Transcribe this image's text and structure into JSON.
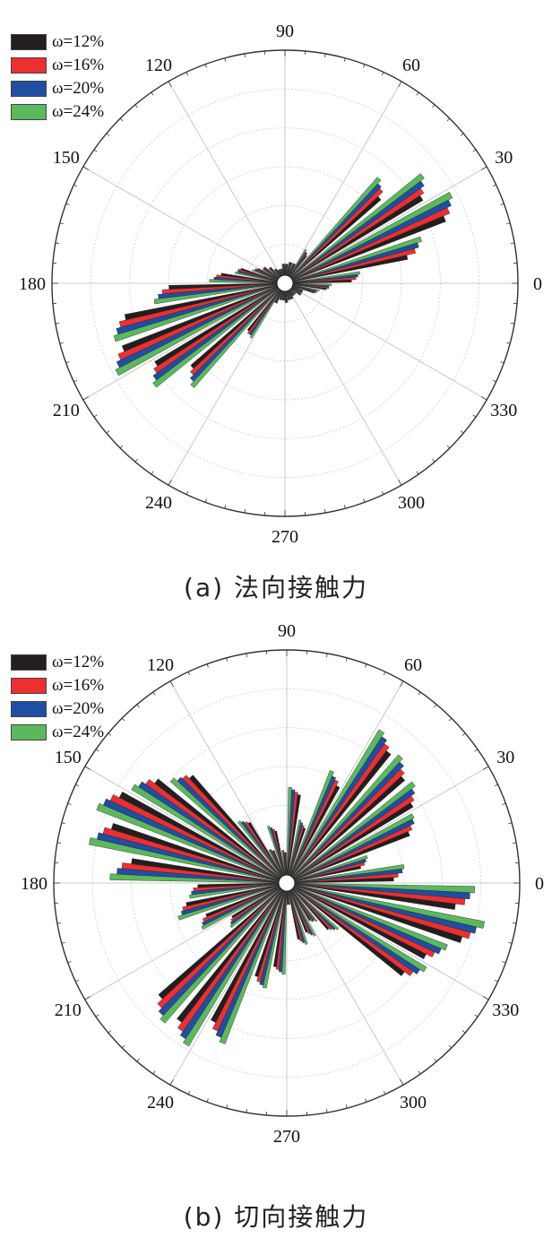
{
  "colors": [
    "#231f20",
    "#ed2f2f",
    "#1f4ea3",
    "#5cb85c"
  ],
  "chart_data": [
    {
      "type": "bar",
      "subtype": "polar-rose",
      "caption": "(a) 法向接触力",
      "angle_labels": [
        "0",
        "30",
        "60",
        "90",
        "120",
        "150",
        "180",
        "210",
        "240",
        "270",
        "300",
        "330"
      ],
      "series_names": [
        "ω=12%",
        "ω=16%",
        "ω=20%",
        "ω=24%"
      ],
      "radial_max": 1.0,
      "grid": true,
      "legend": "top-left",
      "angles": [
        5,
        15,
        25,
        35,
        45,
        55,
        65,
        75,
        85,
        95,
        105,
        115,
        125,
        135,
        145,
        155,
        165,
        175,
        185,
        195,
        205,
        215,
        225,
        235,
        245,
        255,
        265,
        275,
        285,
        295,
        305,
        315,
        325,
        335,
        345,
        355
      ],
      "series": [
        {
          "name": "ω=12%",
          "values": [
            0.26,
            0.52,
            0.73,
            0.68,
            0.53,
            0.12,
            0.06,
            0.06,
            0.05,
            0.05,
            0.03,
            0.03,
            0.04,
            0.06,
            0.08,
            0.1,
            0.17,
            0.25,
            0.48,
            0.69,
            0.74,
            0.64,
            0.52,
            0.23,
            0.06,
            0.04,
            0.04,
            0.05,
            0.04,
            0.04,
            0.03,
            0.03,
            0.05,
            0.05,
            0.1,
            0.15
          ]
        },
        {
          "name": "ω=16%",
          "values": [
            0.28,
            0.56,
            0.76,
            0.7,
            0.56,
            0.13,
            0.06,
            0.06,
            0.05,
            0.05,
            0.03,
            0.03,
            0.04,
            0.06,
            0.08,
            0.11,
            0.18,
            0.27,
            0.51,
            0.72,
            0.77,
            0.66,
            0.54,
            0.24,
            0.06,
            0.04,
            0.04,
            0.05,
            0.04,
            0.04,
            0.03,
            0.03,
            0.05,
            0.05,
            0.11,
            0.16
          ]
        },
        {
          "name": "ω=20%",
          "values": [
            0.29,
            0.58,
            0.78,
            0.72,
            0.57,
            0.13,
            0.06,
            0.06,
            0.05,
            0.05,
            0.03,
            0.03,
            0.04,
            0.06,
            0.08,
            0.11,
            0.18,
            0.28,
            0.53,
            0.74,
            0.79,
            0.68,
            0.56,
            0.24,
            0.06,
            0.04,
            0.04,
            0.05,
            0.04,
            0.04,
            0.03,
            0.03,
            0.05,
            0.05,
            0.11,
            0.16
          ]
        },
        {
          "name": "ω=24%",
          "values": [
            0.3,
            0.6,
            0.8,
            0.74,
            0.59,
            0.14,
            0.06,
            0.06,
            0.05,
            0.05,
            0.03,
            0.03,
            0.04,
            0.06,
            0.08,
            0.12,
            0.19,
            0.3,
            0.55,
            0.76,
            0.81,
            0.7,
            0.58,
            0.25,
            0.06,
            0.04,
            0.04,
            0.05,
            0.04,
            0.04,
            0.03,
            0.03,
            0.05,
            0.05,
            0.12,
            0.17
          ]
        }
      ]
    },
    {
      "type": "bar",
      "subtype": "polar-rose",
      "caption": "(b) 切向接触力",
      "angle_labels": [
        "0",
        "30",
        "60",
        "90",
        "120",
        "150",
        "180",
        "210",
        "240",
        "270",
        "300",
        "330"
      ],
      "series_names": [
        "ω=12%",
        "ω=16%",
        "ω=20%",
        "ω=24%"
      ],
      "radial_max": 1.0,
      "grid": true,
      "legend": "top-left",
      "angles": [
        5,
        15,
        25,
        35,
        45,
        55,
        65,
        75,
        85,
        95,
        105,
        115,
        125,
        135,
        145,
        155,
        165,
        175,
        185,
        195,
        205,
        215,
        225,
        235,
        245,
        255,
        265,
        275,
        285,
        295,
        305,
        315,
        325,
        335,
        345,
        355
      ],
      "series": [
        {
          "name": "ω=12%",
          "values": [
            0.44,
            0.3,
            0.55,
            0.62,
            0.66,
            0.7,
            0.45,
            0.22,
            0.36,
            0.1,
            0.2,
            0.12,
            0.28,
            0.6,
            0.7,
            0.8,
            0.78,
            0.66,
            0.36,
            0.42,
            0.35,
            0.25,
            0.72,
            0.74,
            0.66,
            0.4,
            0.34,
            0.06,
            0.22,
            0.2,
            0.16,
            0.24,
            0.62,
            0.66,
            0.78,
            0.72
          ]
        },
        {
          "name": "ω=16%",
          "values": [
            0.46,
            0.32,
            0.57,
            0.64,
            0.68,
            0.72,
            0.47,
            0.23,
            0.37,
            0.1,
            0.21,
            0.12,
            0.29,
            0.62,
            0.73,
            0.83,
            0.81,
            0.7,
            0.38,
            0.44,
            0.37,
            0.26,
            0.75,
            0.77,
            0.69,
            0.42,
            0.35,
            0.06,
            0.23,
            0.21,
            0.17,
            0.25,
            0.65,
            0.69,
            0.81,
            0.76
          ]
        },
        {
          "name": "ω=20%",
          "values": [
            0.48,
            0.33,
            0.59,
            0.66,
            0.7,
            0.74,
            0.48,
            0.24,
            0.38,
            0.11,
            0.22,
            0.13,
            0.3,
            0.63,
            0.75,
            0.85,
            0.83,
            0.72,
            0.39,
            0.45,
            0.38,
            0.27,
            0.77,
            0.79,
            0.71,
            0.43,
            0.36,
            0.06,
            0.24,
            0.22,
            0.17,
            0.26,
            0.67,
            0.71,
            0.83,
            0.78
          ]
        },
        {
          "name": "ω=24%",
          "values": [
            0.49,
            0.34,
            0.6,
            0.68,
            0.72,
            0.76,
            0.5,
            0.25,
            0.39,
            0.11,
            0.23,
            0.13,
            0.31,
            0.65,
            0.77,
            0.87,
            0.86,
            0.75,
            0.4,
            0.47,
            0.39,
            0.28,
            0.79,
            0.81,
            0.73,
            0.44,
            0.37,
            0.06,
            0.25,
            0.23,
            0.18,
            0.27,
            0.69,
            0.73,
            0.86,
            0.8
          ]
        }
      ]
    }
  ]
}
